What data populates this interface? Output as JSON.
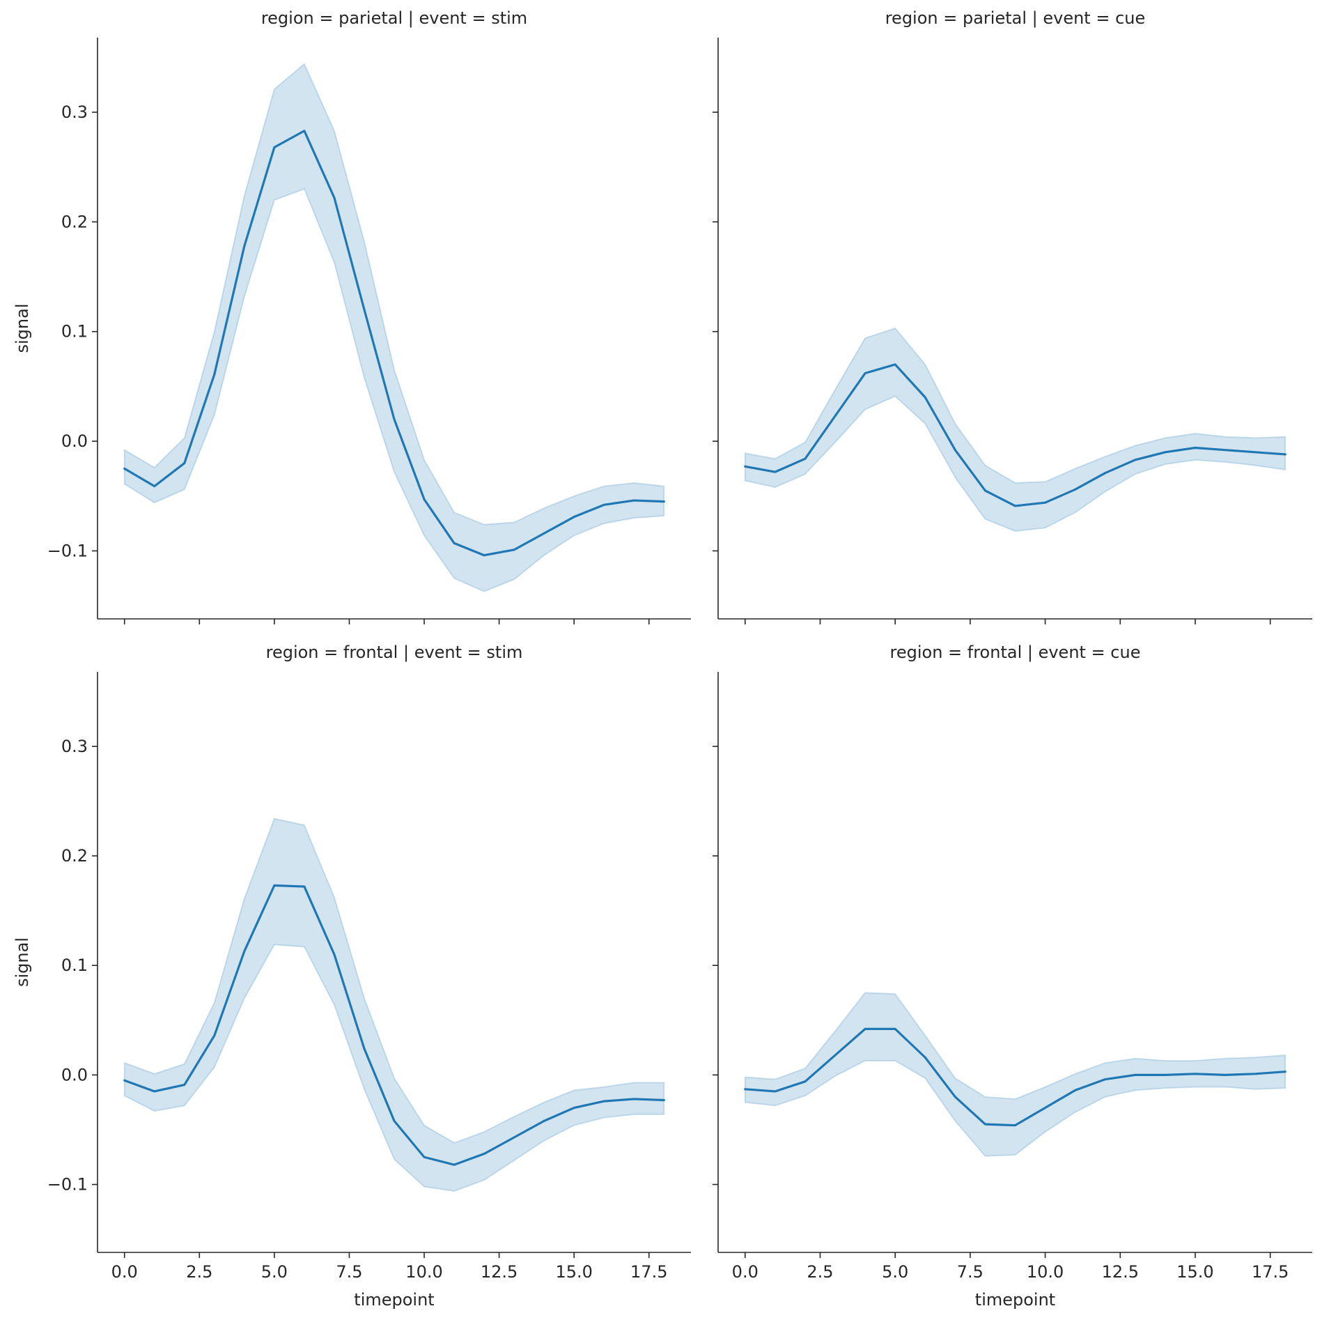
{
  "chart_data": {
    "type": "line",
    "xlabel": "timepoint",
    "ylabel": "signal",
    "xlim": [
      -0.9,
      18.9
    ],
    "ylim": [
      -0.162,
      0.368
    ],
    "xticks": [
      0,
      2.5,
      5,
      7.5,
      10,
      12.5,
      15,
      17.5
    ],
    "xtick_labels": [
      "0.0",
      "2.5",
      "5.0",
      "7.5",
      "10.0",
      "12.5",
      "15.0",
      "17.5"
    ],
    "yticks": [
      -0.1,
      0,
      0.1,
      0.2,
      0.3
    ],
    "ytick_labels": [
      "−0.1",
      "0.0",
      "0.1",
      "0.2",
      "0.3"
    ],
    "grid": false,
    "line_color": "#1f77b4",
    "band_color": "#1f77b4",
    "x": [
      0,
      1,
      2,
      3,
      4,
      5,
      6,
      7,
      8,
      9,
      10,
      11,
      12,
      13,
      14,
      15,
      16,
      17,
      18
    ],
    "panels": [
      {
        "title": "region = parietal | event = stim",
        "row": 0,
        "col": 0,
        "mean": [
          -0.025,
          -0.041,
          -0.02,
          0.061,
          0.178,
          0.268,
          0.283,
          0.222,
          0.12,
          0.02,
          -0.053,
          -0.093,
          -0.104,
          -0.099,
          -0.084,
          -0.069,
          -0.058,
          -0.054,
          -0.055
        ],
        "lower": [
          -0.039,
          -0.056,
          -0.044,
          0.024,
          0.132,
          0.22,
          0.23,
          0.163,
          0.058,
          -0.028,
          -0.086,
          -0.125,
          -0.137,
          -0.126,
          -0.104,
          -0.086,
          -0.075,
          -0.07,
          -0.068
        ],
        "upper": [
          -0.008,
          -0.024,
          0.003,
          0.1,
          0.224,
          0.321,
          0.344,
          0.283,
          0.182,
          0.065,
          -0.017,
          -0.065,
          -0.076,
          -0.074,
          -0.061,
          -0.05,
          -0.041,
          -0.038,
          -0.041
        ]
      },
      {
        "title": "region = parietal | event = cue",
        "row": 0,
        "col": 1,
        "mean": [
          -0.023,
          -0.028,
          -0.016,
          0.023,
          0.062,
          0.07,
          0.04,
          -0.008,
          -0.045,
          -0.059,
          -0.056,
          -0.044,
          -0.029,
          -0.017,
          -0.01,
          -0.006,
          -0.008,
          -0.01,
          -0.012
        ],
        "lower": [
          -0.036,
          -0.042,
          -0.03,
          -0.001,
          0.029,
          0.041,
          0.016,
          -0.033,
          -0.071,
          -0.082,
          -0.079,
          -0.065,
          -0.046,
          -0.03,
          -0.021,
          -0.017,
          -0.019,
          -0.022,
          -0.026
        ],
        "upper": [
          -0.011,
          -0.016,
          -0.001,
          0.047,
          0.094,
          0.103,
          0.07,
          0.016,
          -0.022,
          -0.038,
          -0.037,
          -0.025,
          -0.014,
          -0.004,
          0.003,
          0.007,
          0.004,
          0.003,
          0.004
        ]
      },
      {
        "title": "region = frontal | event = stim",
        "row": 1,
        "col": 0,
        "mean": [
          -0.005,
          -0.015,
          -0.009,
          0.036,
          0.113,
          0.173,
          0.172,
          0.11,
          0.024,
          -0.042,
          -0.075,
          -0.082,
          -0.072,
          -0.057,
          -0.042,
          -0.03,
          -0.024,
          -0.022,
          -0.023
        ],
        "lower": [
          -0.019,
          -0.033,
          -0.028,
          0.007,
          0.07,
          0.119,
          0.117,
          0.064,
          -0.013,
          -0.077,
          -0.102,
          -0.106,
          -0.096,
          -0.078,
          -0.06,
          -0.046,
          -0.039,
          -0.036,
          -0.036
        ],
        "upper": [
          0.011,
          0.001,
          0.01,
          0.066,
          0.161,
          0.234,
          0.228,
          0.162,
          0.07,
          -0.003,
          -0.046,
          -0.062,
          -0.052,
          -0.038,
          -0.025,
          -0.014,
          -0.011,
          -0.007,
          -0.007
        ]
      },
      {
        "title": "region = frontal | event = cue",
        "row": 1,
        "col": 1,
        "mean": [
          -0.013,
          -0.015,
          -0.006,
          0.018,
          0.042,
          0.042,
          0.016,
          -0.02,
          -0.045,
          -0.046,
          -0.03,
          -0.014,
          -0.004,
          0.0,
          0.0,
          0.001,
          0.0,
          0.001,
          0.003
        ],
        "lower": [
          -0.025,
          -0.028,
          -0.019,
          -0.001,
          0.013,
          0.013,
          -0.003,
          -0.042,
          -0.074,
          -0.073,
          -0.052,
          -0.034,
          -0.02,
          -0.014,
          -0.012,
          -0.011,
          -0.011,
          -0.013,
          -0.012
        ],
        "upper": [
          -0.002,
          -0.004,
          0.006,
          0.04,
          0.075,
          0.074,
          0.036,
          -0.003,
          -0.02,
          -0.022,
          -0.011,
          0.001,
          0.011,
          0.015,
          0.013,
          0.013,
          0.015,
          0.016,
          0.018
        ]
      }
    ]
  }
}
